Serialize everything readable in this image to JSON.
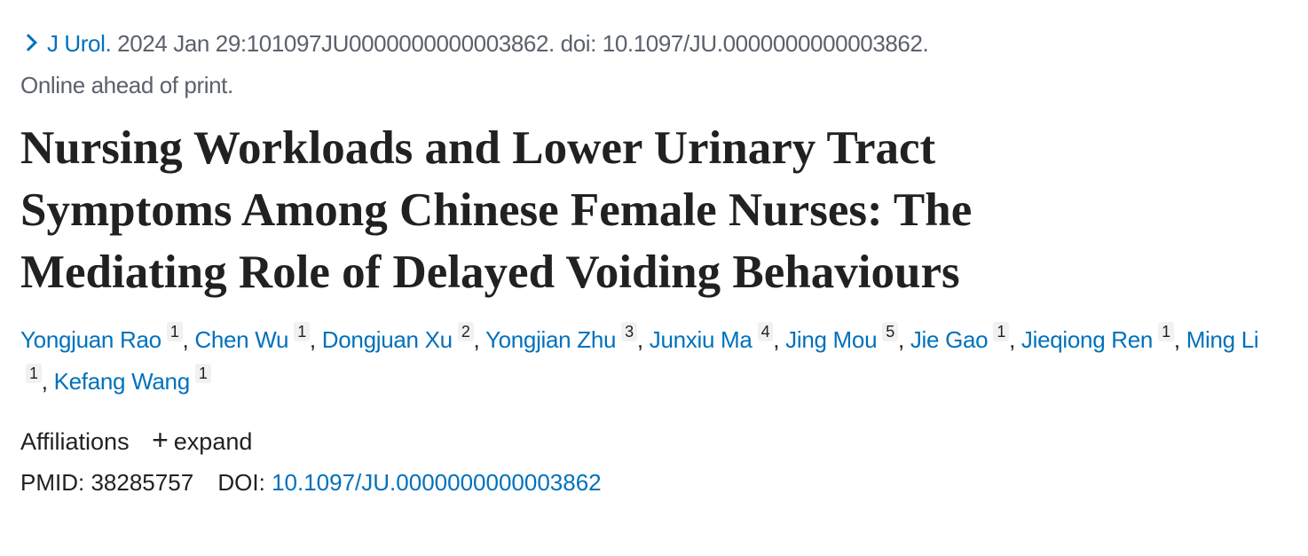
{
  "citation": {
    "journal": "J Urol.",
    "details": " 2024 Jan 29:101097JU0000000000003862. doi: 10.1097/JU.0000000000003862.",
    "status": "Online ahead of print."
  },
  "title": "Nursing Workloads and Lower Urinary Tract Symptoms Among Chinese Female Nurses: The Mediating Role of Delayed Voiding Behaviours",
  "authors": [
    {
      "name": "Yongjuan Rao",
      "aff": "1"
    },
    {
      "name": "Chen Wu",
      "aff": "1"
    },
    {
      "name": "Dongjuan Xu",
      "aff": "2"
    },
    {
      "name": "Yongjian Zhu",
      "aff": "3"
    },
    {
      "name": "Junxiu Ma",
      "aff": "4"
    },
    {
      "name": "Jing Mou",
      "aff": "5"
    },
    {
      "name": "Jie Gao",
      "aff": "1"
    },
    {
      "name": "Jieqiong Ren",
      "aff": "1"
    },
    {
      "name": "Ming Li",
      "aff": "1"
    },
    {
      "name": "Kefang Wang",
      "aff": "1"
    }
  ],
  "separator": ", ",
  "affiliations": {
    "label": "Affiliations",
    "icon": "plus-icon",
    "plus": "+",
    "toggle": "expand"
  },
  "ids": {
    "pmid_label": "PMID:",
    "pmid": "38285757",
    "doi_label": "DOI:",
    "doi": "10.1097/JU.0000000000003862"
  }
}
